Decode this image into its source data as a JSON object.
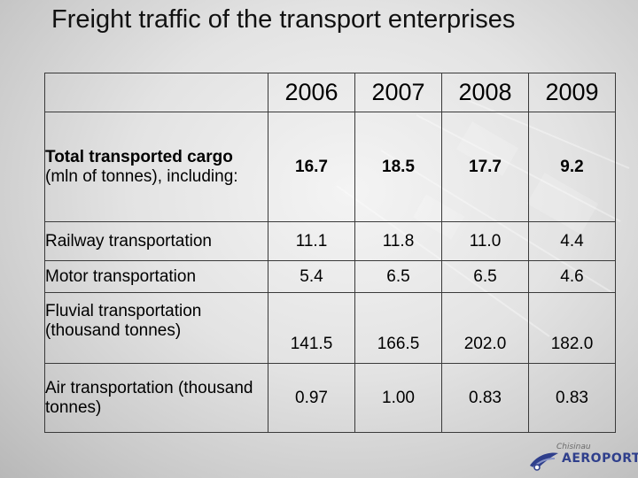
{
  "slide": {
    "title": "Freight traffic of the transport enterprises"
  },
  "table": {
    "years": [
      "2006",
      "2007",
      "2008",
      "2009"
    ],
    "rows": [
      {
        "label_bold": "Total transported cargo",
        "label_rest": " (mln of tonnes), including:",
        "values": [
          "16.7",
          "18.5",
          "17.7",
          "9.2"
        ]
      },
      {
        "label": "Railway transportation",
        "values": [
          "11.1",
          "11.8",
          "11.0",
          "4.4"
        ]
      },
      {
        "label": "Motor transportation",
        "values": [
          "5.4",
          "6.5",
          "6.5",
          "4.6"
        ]
      },
      {
        "label": "Fluvial transportation (thousand tonnes)",
        "values": [
          "141.5",
          "166.5",
          "202.0",
          "182.0"
        ]
      },
      {
        "label": "Air transportation (thousand tonnes)",
        "values": [
          "0.97",
          "1.00",
          "0.83",
          "0.83"
        ]
      }
    ]
  },
  "logo": {
    "small_text": "Chisinau",
    "main_text": "AEROPORT",
    "brand_color": "#2f3f8c"
  }
}
